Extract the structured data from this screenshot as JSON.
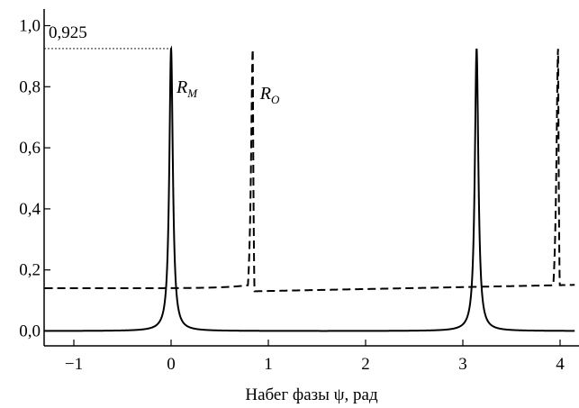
{
  "chart_data": {
    "type": "line",
    "title": "",
    "xlabel": "Набег фазы ψ, рад",
    "ylabel": "",
    "xlim": [
      -1.3,
      4.15
    ],
    "ylim": [
      -0.05,
      1.02
    ],
    "x_ticks": [
      -1,
      0,
      1,
      2,
      3,
      4
    ],
    "x_tick_labels": [
      "−1",
      "0",
      "1",
      "2",
      "3",
      "4"
    ],
    "y_ticks": [
      0.0,
      0.2,
      0.4,
      0.6,
      0.8,
      1.0
    ],
    "y_tick_labels": [
      "0,0",
      "0,2",
      "0,4",
      "0,6",
      "0,8",
      "1,0"
    ],
    "grid": false,
    "legend": "none",
    "annotation": {
      "text": "0,925",
      "x": 0,
      "y": 0.925,
      "guide": "dotted line from y-axis to peak"
    },
    "series": [
      {
        "label_main": "R",
        "label_sub": "M",
        "style": "solid",
        "color": "#000000",
        "peak_value": 0.925,
        "peak_positions": [
          0.0,
          3.1416
        ],
        "baseline": 0.0
      },
      {
        "label_main": "R",
        "label_sub": "O",
        "style": "dashed",
        "color": "#000000",
        "peak_value": 0.925,
        "peak_positions": [
          0.84,
          3.98
        ],
        "baseline_left": 0.14,
        "baseline_after_dip": 0.13,
        "baseline_right": 0.15
      }
    ]
  }
}
